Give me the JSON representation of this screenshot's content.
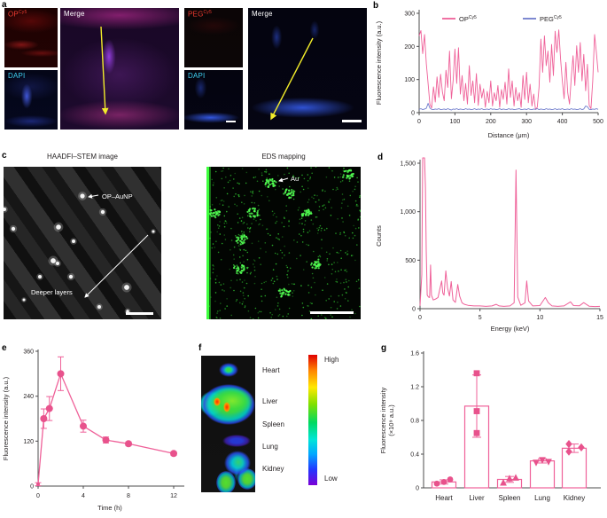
{
  "colors": {
    "pink": "#ef6199",
    "pink_dark": "#e8528c",
    "blue": "#6f7ccc",
    "axis": "#4c4c4e",
    "text": "#231f20",
    "yellow_arrow": "#f2ec2a",
    "eds_green": "#2fbf2f",
    "eds_green_bright": "#52ff52"
  },
  "panel_a": {
    "letter": "a",
    "op_label": {
      "base": "OP",
      "sup": "Cy5"
    },
    "peg_label": {
      "base": "PEG",
      "sup": "Cy5"
    },
    "dapi_label": "DAPI",
    "merge_label": "Merge"
  },
  "panel_b": {
    "letter": "b"
  },
  "panel_c": {
    "letter": "c",
    "stem_title": "HAADFI–STEM image",
    "eds_title": "EDS mapping",
    "aunp_label": "OP–AuNP",
    "deeper_label": "Deeper layers",
    "au_label": "Au",
    "stem_dots": [
      [
        89,
        33,
        2.6
      ],
      [
        112,
        51,
        2.2
      ],
      [
        1,
        48,
        2.0
      ],
      [
        11,
        70,
        2.2
      ],
      [
        62,
        68,
        2.8
      ],
      [
        79,
        84,
        2.0
      ],
      [
        56,
        106,
        2.9
      ],
      [
        61,
        109,
        2.0
      ],
      [
        41,
        124,
        2.0
      ],
      [
        76,
        124,
        2.2
      ],
      [
        139,
        136,
        2.9
      ],
      [
        108,
        158,
        2.0
      ],
      [
        140,
        163,
        1.8
      ],
      [
        169,
        73,
        1.5
      ],
      [
        23,
        150,
        1.5
      ]
    ],
    "eds_clusters": [
      [
        72,
        18
      ],
      [
        94,
        30
      ],
      [
        10,
        52
      ],
      [
        52,
        52
      ],
      [
        114,
        54
      ],
      [
        40,
        82
      ],
      [
        37,
        115
      ],
      [
        125,
        110
      ],
      [
        160,
        9
      ],
      [
        88,
        142
      ]
    ]
  },
  "panel_d": {
    "letter": "d"
  },
  "panel_e": {
    "letter": "e"
  },
  "panel_f": {
    "letter": "f",
    "organs": [
      "Heart",
      "Liver",
      "Spleen",
      "Lung",
      "Kidney"
    ],
    "colorbar_high": "High",
    "colorbar_low": "Low"
  },
  "panel_g": {
    "letter": "g"
  },
  "chart_data": [
    {
      "id": "b",
      "type": "line",
      "xlabel": "Distance (μm)",
      "ylabel": "Fluorescence intensity (a.u.)",
      "xlim": [
        0,
        500
      ],
      "ylim": [
        0,
        300
      ],
      "xticks": [
        0,
        100,
        200,
        300,
        400,
        500
      ],
      "yticks": [
        0,
        100,
        200,
        300
      ],
      "x_step": 5,
      "legend_position": "top",
      "grid": false,
      "series": [
        {
          "name_base": "OP",
          "name_sup": "Cy5",
          "color_key": "pink",
          "values": [
            232,
            248,
            178,
            236,
            148,
            88,
            26,
            14,
            78,
            32,
            108,
            46,
            116,
            62,
            36,
            128,
            76,
            186,
            42,
            98,
            192,
            88,
            196,
            56,
            112,
            36,
            88,
            26,
            142,
            52,
            96,
            30,
            118,
            22,
            86,
            44,
            72,
            16,
            64,
            30,
            96,
            20,
            60,
            36,
            82,
            16,
            70,
            40,
            92,
            26,
            132,
            46,
            96,
            20,
            76,
            36,
            60,
            16,
            112,
            40,
            122,
            30,
            86,
            20,
            56,
            10,
            16,
            76,
            222,
            122,
            232,
            142,
            186,
            92,
            206,
            112,
            246,
            182,
            250,
            162,
            96,
            42,
            152,
            60,
            26,
            106,
            172,
            82,
            202,
            122,
            212,
            96,
            176,
            66,
            146,
            22,
            12,
            96,
            236,
            182,
            122
          ]
        },
        {
          "name_base": "PEG",
          "name_sup": "Cy5",
          "color_key": "blue",
          "values": [
            10,
            12,
            9,
            11,
            13,
            28,
            14,
            10,
            9,
            11,
            10,
            12,
            9,
            10,
            11,
            9,
            12,
            10,
            8,
            11,
            10,
            12,
            9,
            11,
            10,
            9,
            12,
            10,
            11,
            9,
            10,
            12,
            9,
            11,
            10,
            12,
            9,
            10,
            11,
            9,
            12,
            10,
            11,
            9,
            10,
            12,
            9,
            11,
            10,
            9,
            12,
            10,
            11,
            9,
            10,
            11,
            12,
            9,
            10,
            11,
            9,
            12,
            10,
            9,
            11,
            10,
            12,
            9,
            11,
            10,
            9,
            12,
            10,
            11,
            9,
            10,
            12,
            9,
            11,
            10,
            12,
            9,
            10,
            11,
            9,
            12,
            10,
            11,
            9,
            10,
            12,
            9,
            11,
            20,
            18,
            10,
            9,
            11,
            10,
            12,
            10
          ]
        }
      ]
    },
    {
      "id": "d",
      "type": "line",
      "xlabel": "Energy (keV)",
      "ylabel": "Counts",
      "xlim": [
        0,
        15
      ],
      "ylim": [
        0,
        1500
      ],
      "xticks": [
        0,
        5,
        10,
        15
      ],
      "yticks": [
        0,
        500,
        1000,
        1500
      ],
      "ytick_labels": [
        "0",
        "500",
        "1,000",
        "1,500"
      ],
      "grid": false,
      "points": [
        [
          0,
          30
        ],
        [
          0.15,
          350
        ],
        [
          0.22,
          1600
        ],
        [
          0.38,
          1600
        ],
        [
          0.45,
          1250
        ],
        [
          0.52,
          600
        ],
        [
          0.6,
          140
        ],
        [
          0.7,
          120
        ],
        [
          0.8,
          115
        ],
        [
          0.88,
          450
        ],
        [
          0.95,
          140
        ],
        [
          1.1,
          90
        ],
        [
          1.3,
          100
        ],
        [
          1.5,
          115
        ],
        [
          1.65,
          200
        ],
        [
          1.8,
          285
        ],
        [
          1.9,
          160
        ],
        [
          2.0,
          140
        ],
        [
          2.15,
          390
        ],
        [
          2.3,
          210
        ],
        [
          2.45,
          130
        ],
        [
          2.6,
          280
        ],
        [
          2.75,
          90
        ],
        [
          2.95,
          65
        ],
        [
          3.15,
          250
        ],
        [
          3.3,
          130
        ],
        [
          3.5,
          60
        ],
        [
          3.7,
          45
        ],
        [
          4.0,
          35
        ],
        [
          4.5,
          28
        ],
        [
          5.0,
          28
        ],
        [
          5.5,
          24
        ],
        [
          6.0,
          28
        ],
        [
          6.35,
          45
        ],
        [
          6.6,
          28
        ],
        [
          7.0,
          24
        ],
        [
          7.5,
          28
        ],
        [
          7.85,
          60
        ],
        [
          8.0,
          1430
        ],
        [
          8.15,
          120
        ],
        [
          8.4,
          35
        ],
        [
          8.75,
          60
        ],
        [
          8.9,
          285
        ],
        [
          9.05,
          80
        ],
        [
          9.4,
          28
        ],
        [
          10.0,
          32
        ],
        [
          10.45,
          115
        ],
        [
          10.7,
          60
        ],
        [
          11.0,
          28
        ],
        [
          11.5,
          24
        ],
        [
          12.0,
          28
        ],
        [
          12.55,
          70
        ],
        [
          12.8,
          32
        ],
        [
          13.3,
          30
        ],
        [
          13.65,
          62
        ],
        [
          14.1,
          26
        ],
        [
          14.6,
          22
        ],
        [
          15.0,
          24
        ]
      ]
    },
    {
      "id": "e",
      "type": "line-scatter",
      "xlabel": "Time (h)",
      "ylabel": "Fluorescence intensity (a.u.)",
      "xlim": [
        0,
        13
      ],
      "ylim": [
        0,
        360
      ],
      "xticks": [
        0,
        4,
        8,
        12
      ],
      "yticks": [
        0,
        120,
        240,
        360
      ],
      "grid": false,
      "x": [
        0,
        0.5,
        1,
        2,
        4,
        6,
        8,
        12
      ],
      "y": [
        5,
        180,
        207,
        300,
        160,
        123,
        113,
        87
      ],
      "yerr": [
        4,
        26,
        32,
        45,
        16,
        8,
        5,
        5
      ]
    },
    {
      "id": "g",
      "type": "bar",
      "xlabel": "",
      "ylabel_lines": [
        "Fluorescence intensity",
        "(×10⁹ a.u.)"
      ],
      "ylim": [
        0,
        1.6
      ],
      "yticks": [
        0,
        0.4,
        0.8,
        1.2,
        1.6
      ],
      "ytick_labels": [
        "0",
        "0.4",
        "0.8",
        "1.2",
        "1.6"
      ],
      "grid": false,
      "categories": [
        "Heart",
        "Liver",
        "Spleen",
        "Lung",
        "Kidney"
      ],
      "values": [
        0.07,
        0.97,
        0.1,
        0.32,
        0.47
      ],
      "errors": [
        0.025,
        0.37,
        0.035,
        0.025,
        0.05
      ],
      "points": [
        {
          "marker": "circle",
          "values": [
            0.05,
            0.07,
            0.1
          ],
          "dx": [
            -8,
            0,
            7
          ]
        },
        {
          "marker": "square",
          "values": [
            0.65,
            0.91,
            1.36
          ],
          "dx": [
            0,
            0,
            0
          ]
        },
        {
          "marker": "triangle-up",
          "values": [
            0.06,
            0.11,
            0.12
          ],
          "dx": [
            -7,
            0,
            7
          ]
        },
        {
          "marker": "triangle-down",
          "values": [
            0.3,
            0.33,
            0.31
          ],
          "dx": [
            -7,
            0,
            7
          ]
        },
        {
          "marker": "diamond",
          "values": [
            0.52,
            0.43,
            0.48
          ],
          "dx": [
            -6,
            -6,
            8
          ]
        }
      ]
    }
  ]
}
